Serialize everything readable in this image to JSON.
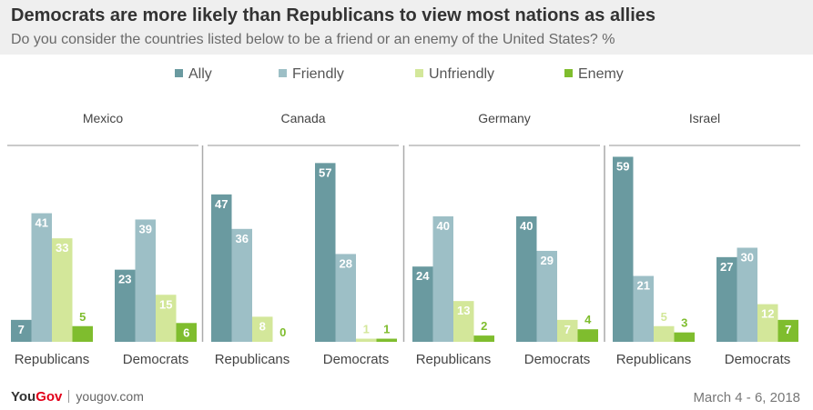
{
  "title": "Democrats are more likely than Republicans to view most nations as allies",
  "subtitle": "Do you consider the countries listed below to be a friend or an enemy of the United States? %",
  "footer": {
    "brand_you": "You",
    "brand_gov": "Gov",
    "url": "yougov.com",
    "date": "March 4 - 6, 2018"
  },
  "colors": {
    "Ally": "#6a9aa0",
    "Friendly": "#9dbfc6",
    "Unfriendly": "#d3e79a",
    "Enemy": "#7fbd2e",
    "text": "#444444",
    "divider": "#aaaaaa"
  },
  "chart_data": {
    "type": "bar",
    "series_names": [
      "Ally",
      "Friendly",
      "Unfriendly",
      "Enemy"
    ],
    "groups": [
      {
        "country": "Mexico",
        "parties": [
          {
            "label": "Republicans",
            "values": [
              7,
              41,
              33,
              5
            ]
          },
          {
            "label": "Democrats",
            "values": [
              23,
              39,
              15,
              6
            ]
          }
        ]
      },
      {
        "country": "Canada",
        "parties": [
          {
            "label": "Republicans",
            "values": [
              47,
              36,
              8,
              0
            ]
          },
          {
            "label": "Democrats",
            "values": [
              57,
              28,
              1,
              1
            ]
          }
        ]
      },
      {
        "country": "Germany",
        "parties": [
          {
            "label": "Republicans",
            "values": [
              24,
              40,
              13,
              2
            ]
          },
          {
            "label": "Democrats",
            "values": [
              40,
              29,
              7,
              4
            ]
          }
        ]
      },
      {
        "country": "Israel",
        "parties": [
          {
            "label": "Republicans",
            "values": [
              59,
              21,
              5,
              3
            ]
          },
          {
            "label": "Democrats",
            "values": [
              27,
              30,
              12,
              7
            ]
          }
        ]
      }
    ],
    "ylim": [
      0,
      60
    ]
  }
}
